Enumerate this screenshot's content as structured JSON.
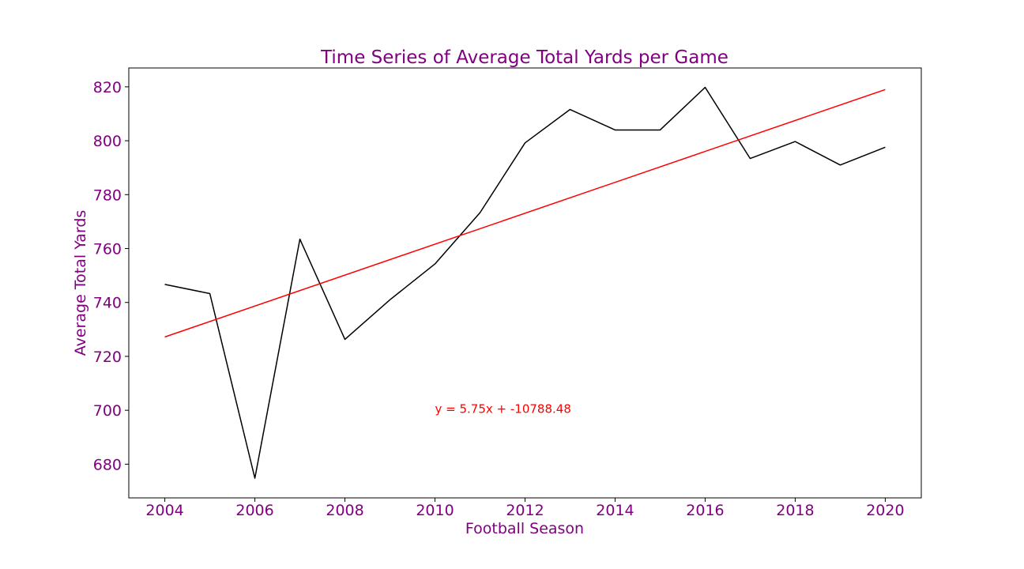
{
  "colors": {
    "text": "#800080",
    "series_line": "#000000",
    "trend_line": "#ff0000",
    "annotation": "#ff0000",
    "axes": "#000000",
    "background": "#ffffff"
  },
  "chart_data": {
    "type": "line",
    "title": "Time Series of Average Total Yards per Game",
    "xlabel": "Football Season",
    "ylabel": "Average Total Yards",
    "xlim": [
      2003.2,
      2020.8
    ],
    "ylim": [
      667.5,
      827.0
    ],
    "grid": false,
    "legend": "none",
    "xticks": [
      2004,
      2006,
      2008,
      2010,
      2012,
      2014,
      2016,
      2018,
      2020
    ],
    "yticks": [
      680,
      700,
      720,
      740,
      760,
      780,
      800,
      820
    ],
    "series": [
      {
        "x": [
          2004,
          2005,
          2006,
          2007,
          2008,
          2009,
          2010,
          2011,
          2012,
          2013,
          2014,
          2015,
          2016,
          2017,
          2018,
          2019,
          2020
        ],
        "values": [
          746.7,
          743.3,
          674.8,
          763.5,
          726.3,
          741.0,
          754.3,
          773.3,
          799.2,
          811.6,
          804.0,
          804.0,
          819.8,
          793.4,
          799.7,
          791.0,
          797.6
        ]
      },
      {
        "x": [
          2004,
          2020
        ],
        "values": [
          727.2,
          819.0
        ]
      }
    ],
    "annotations": [
      {
        "text": "y = 5.75x + -10788.48",
        "x": 2010,
        "y": 700.5
      }
    ]
  }
}
